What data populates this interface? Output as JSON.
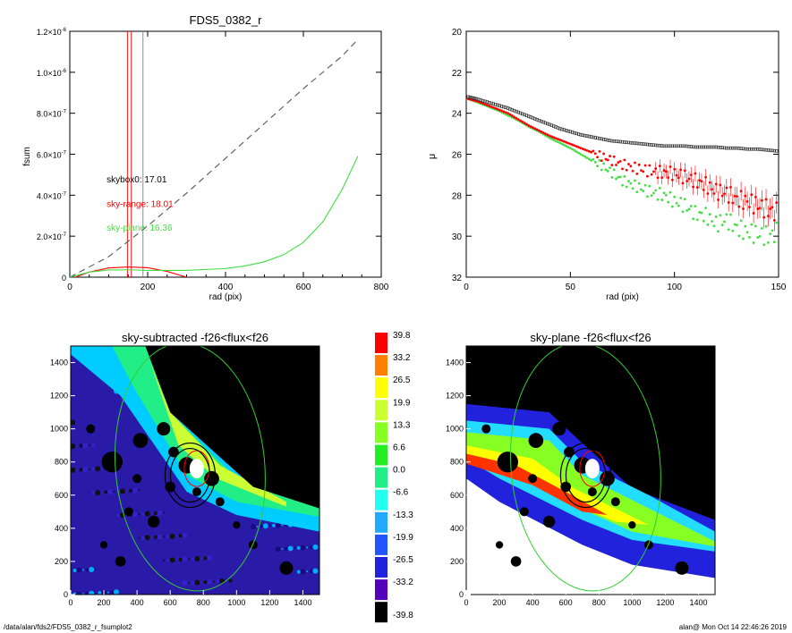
{
  "footer": {
    "left": "/data/alan/fds2/FDS5_0382_r_fsumplot2",
    "right": "alan@  Mon Oct 14 22:46:26 2019"
  },
  "colors": {
    "red": "#ff0000",
    "green": "#44dd44",
    "dash": "#555555"
  },
  "chart_data": [
    {
      "type": "line",
      "title": "FDS5_0382_r",
      "xlabel": "rad (pix)",
      "ylabel": "fsum",
      "xlim": [
        0,
        800
      ],
      "ylim": [
        0,
        1.2e-06
      ],
      "xticks": [
        0,
        200,
        400,
        600,
        800
      ],
      "yticks": [
        {
          "v": 0,
          "label": "0"
        },
        {
          "v": 2e-07,
          "label": "2.0×10",
          "exp": "-7"
        },
        {
          "v": 4e-07,
          "label": "4.0×10",
          "exp": "-7"
        },
        {
          "v": 6e-07,
          "label": "6.0×10",
          "exp": "-7"
        },
        {
          "v": 8e-07,
          "label": "8.0×10",
          "exp": "-7"
        },
        {
          "v": 1e-06,
          "label": "1.0×10",
          "exp": "-6"
        },
        {
          "v": 1.2e-06,
          "label": "1.2×10",
          "exp": "-6"
        }
      ],
      "vlines": [
        {
          "x": 148,
          "color": "red"
        },
        {
          "x": 158,
          "color": "red"
        },
        {
          "x": 188,
          "color": "gray"
        }
      ],
      "annotations": [
        {
          "text": "skybox0: 17.01",
          "color": "black",
          "x": 90,
          "y": 4.8e-07
        },
        {
          "text": "sky-range: 18.01",
          "color": "red",
          "x": 90,
          "y": 3.6e-07
        },
        {
          "text": "sky-plane: 16.36",
          "color": "green",
          "x": 90,
          "y": 2.45e-07
        }
      ],
      "series": [
        {
          "style": "dash",
          "color": "dash",
          "x": [
            0,
            100,
            200,
            300,
            400,
            500,
            600,
            700,
            740
          ],
          "y": [
            0,
            1e-07,
            2.5e-07,
            4.1e-07,
            5.8e-07,
            7.5e-07,
            9.2e-07,
            1.08e-06,
            1.16e-06
          ]
        },
        {
          "style": "solid",
          "color": "red",
          "x": [
            0,
            50,
            100,
            150,
            200,
            250,
            300,
            320
          ],
          "y": [
            -1e-08,
            2.5e-08,
            4.5e-08,
            5e-08,
            4.6e-08,
            2.8e-08,
            0,
            -1e-08
          ]
        },
        {
          "style": "solid",
          "color": "green",
          "x": [
            0,
            50,
            100,
            150,
            200,
            300,
            400,
            450,
            500,
            550,
            600,
            650,
            700,
            740
          ],
          "y": [
            0,
            2.5e-08,
            3.5e-08,
            3.6e-08,
            3.3e-08,
            3.3e-08,
            4.2e-08,
            5.5e-08,
            7.5e-08,
            1.1e-07,
            1.7e-07,
            2.7e-07,
            4.3e-07,
            5.9e-07
          ]
        }
      ]
    },
    {
      "type": "scatter",
      "title": "",
      "xlabel": "rad (pix)",
      "ylabel": "μ",
      "xlim": [
        0,
        150
      ],
      "ylim": [
        32,
        20
      ],
      "xticks": [
        0,
        50,
        100,
        150
      ],
      "yticks": [
        20,
        22,
        24,
        26,
        28,
        30,
        32
      ],
      "series": [
        {
          "color": "black",
          "marker": "square",
          "x": [
            1,
            5,
            10,
            15,
            20,
            25,
            30,
            35,
            40,
            45,
            50,
            55,
            60,
            65,
            70,
            75,
            80,
            85,
            90,
            95,
            100,
            105,
            110,
            115,
            120,
            125,
            130,
            135,
            140,
            145,
            150
          ],
          "y": [
            23.2,
            23.3,
            23.45,
            23.6,
            23.75,
            23.95,
            24.15,
            24.35,
            24.55,
            24.75,
            24.9,
            25.05,
            25.15,
            25.25,
            25.35,
            25.4,
            25.45,
            25.5,
            25.55,
            25.6,
            25.6,
            25.6,
            25.65,
            25.65,
            25.65,
            25.7,
            25.7,
            25.75,
            25.75,
            25.8,
            25.85
          ]
        },
        {
          "color": "red",
          "marker": "dot",
          "x": [
            1,
            5,
            10,
            15,
            20,
            25,
            30,
            35,
            40,
            45,
            50,
            55,
            60,
            65,
            70,
            75,
            80,
            85,
            90,
            95,
            100,
            105,
            110,
            115,
            120,
            125,
            130,
            135,
            140,
            145,
            150
          ],
          "y": [
            23.3,
            23.4,
            23.6,
            23.8,
            24.0,
            24.3,
            24.6,
            24.85,
            25.1,
            25.3,
            25.5,
            25.7,
            25.9,
            26.1,
            26.3,
            26.5,
            26.65,
            26.75,
            26.85,
            26.9,
            26.95,
            27.1,
            27.3,
            27.5,
            27.8,
            27.9,
            28.2,
            28.3,
            28.5,
            28.7,
            28.9
          ]
        },
        {
          "color": "green",
          "marker": "dot",
          "x": [
            1,
            5,
            10,
            15,
            20,
            25,
            30,
            35,
            40,
            45,
            50,
            55,
            60,
            65,
            70,
            75,
            80,
            85,
            90,
            95,
            100,
            105,
            110,
            115,
            120,
            125,
            130,
            135,
            140,
            145,
            150
          ],
          "y": [
            23.3,
            23.45,
            23.65,
            23.85,
            24.1,
            24.35,
            24.65,
            24.9,
            25.2,
            25.45,
            25.7,
            26.0,
            26.3,
            26.55,
            26.9,
            27.3,
            27.5,
            27.7,
            27.9,
            28.0,
            28.3,
            28.5,
            28.9,
            29.0,
            29.4,
            29.2,
            29.6,
            29.8,
            29.9,
            30.0,
            29.8
          ]
        }
      ]
    },
    {
      "type": "heatmap",
      "title": "sky-subtracted -f26<flux<f26",
      "xlim": [
        0,
        1500
      ],
      "ylim": [
        0,
        1500
      ],
      "xticks": [
        0,
        200,
        400,
        600,
        800,
        1000,
        1200,
        1400
      ],
      "yticks": [
        0,
        200,
        400,
        600,
        800,
        1000,
        1200,
        1400
      ]
    },
    {
      "type": "heatmap",
      "title": "sky-plane -f26<flux<f26",
      "xlim": [
        0,
        1500
      ],
      "ylim": [
        0,
        1500
      ],
      "xticks": [
        0,
        200,
        400,
        600,
        800,
        1000,
        1200,
        1400
      ],
      "yticks": [
        0,
        200,
        400,
        600,
        800,
        1000,
        1200,
        1400
      ]
    }
  ],
  "colorbar": {
    "labels": [
      "39.8",
      "33.2",
      "26.5",
      "19.9",
      "13.3",
      "6.6",
      "0.0",
      "-6.6",
      "-13.3",
      "-19.9",
      "-26.5",
      "-33.2",
      "-39.8"
    ],
    "colors": [
      "#ff0000",
      "#ff8000",
      "#ffff00",
      "#ccff33",
      "#88ff22",
      "#22ee22",
      "#22ee88",
      "#22ffee",
      "#22aaff",
      "#2255ff",
      "#2222dd",
      "#5500bb",
      "#000000"
    ]
  }
}
